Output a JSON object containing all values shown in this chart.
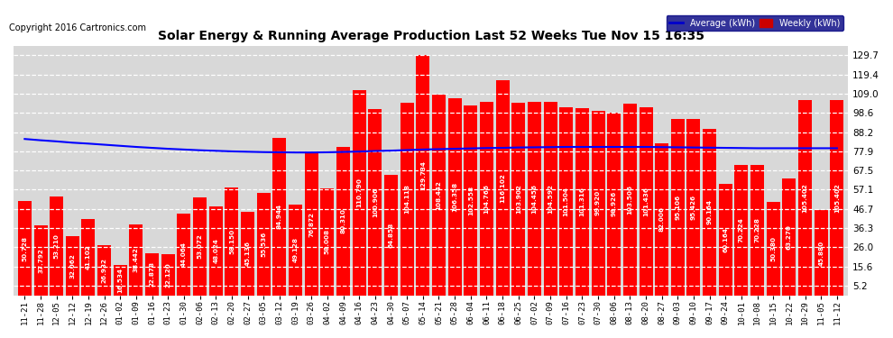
{
  "title": "Solar Energy & Running Average Production Last 52 Weeks Tue Nov 15 16:35",
  "copyright": "Copyright 2016 Cartronics.com",
  "bar_color": "#ff0000",
  "avg_line_color": "#0000ff",
  "background_color": "#ffffff",
  "plot_bg_color": "#d8d8d8",
  "yticks": [
    5.2,
    15.6,
    26.0,
    36.3,
    46.7,
    57.1,
    67.5,
    77.9,
    88.2,
    98.6,
    109.0,
    119.4,
    129.7
  ],
  "ylim": [
    0,
    135
  ],
  "categories": [
    "11-21",
    "11-28",
    "12-05",
    "12-12",
    "12-19",
    "12-26",
    "01-02",
    "01-09",
    "01-16",
    "01-23",
    "01-30",
    "02-06",
    "02-13",
    "02-20",
    "02-27",
    "03-05",
    "03-12",
    "03-19",
    "03-26",
    "04-02",
    "04-09",
    "04-16",
    "04-23",
    "04-30",
    "05-07",
    "05-14",
    "05-21",
    "05-28",
    "06-04",
    "06-11",
    "06-18",
    "06-25",
    "07-02",
    "07-09",
    "07-16",
    "07-23",
    "07-30",
    "08-06",
    "08-13",
    "08-20",
    "08-27",
    "09-03",
    "09-10",
    "09-17",
    "09-24",
    "10-01",
    "10-08",
    "10-15",
    "10-22",
    "10-29",
    "11-05",
    "11-12"
  ],
  "weekly_kwh": [
    50.728,
    37.792,
    53.21,
    32.062,
    41.102,
    26.932,
    16.534,
    38.442,
    22.878,
    22.12,
    44.064,
    53.072,
    48.024,
    58.15,
    45.136,
    55.536,
    84.944,
    49.128,
    76.872,
    58.008,
    80.31,
    110.79,
    100.906,
    64.858,
    104.118,
    129.734,
    108.442,
    106.358,
    102.558,
    104.766,
    116.102,
    103.902,
    104.456,
    104.592,
    101.504,
    101.316,
    99.92,
    98.926,
    103.506,
    101.436,
    82.006,
    95.106,
    95.426,
    90.164,
    60.164,
    70.224,
    70.228,
    50.38,
    63.27,
    105.402,
    45.88,
    105.402
  ],
  "avg_kwh": [
    84.5,
    83.8,
    83.2,
    82.5,
    82.0,
    81.4,
    80.8,
    80.2,
    79.7,
    79.2,
    78.8,
    78.4,
    78.1,
    77.8,
    77.6,
    77.4,
    77.3,
    77.2,
    77.2,
    77.3,
    77.5,
    77.7,
    78.0,
    78.2,
    78.5,
    78.8,
    79.0,
    79.2,
    79.4,
    79.6,
    79.7,
    79.9,
    80.0,
    80.1,
    80.2,
    80.2,
    80.2,
    80.2,
    80.2,
    80.2,
    80.1,
    80.0,
    79.9,
    79.8,
    79.7,
    79.6,
    79.5,
    79.5,
    79.5,
    79.5,
    79.5,
    79.5
  ],
  "legend_avg_color": "#0000cc",
  "legend_weekly_color": "#cc0000",
  "legend_avg_label": "Average (kWh)",
  "legend_weekly_label": "Weekly (kWh)"
}
